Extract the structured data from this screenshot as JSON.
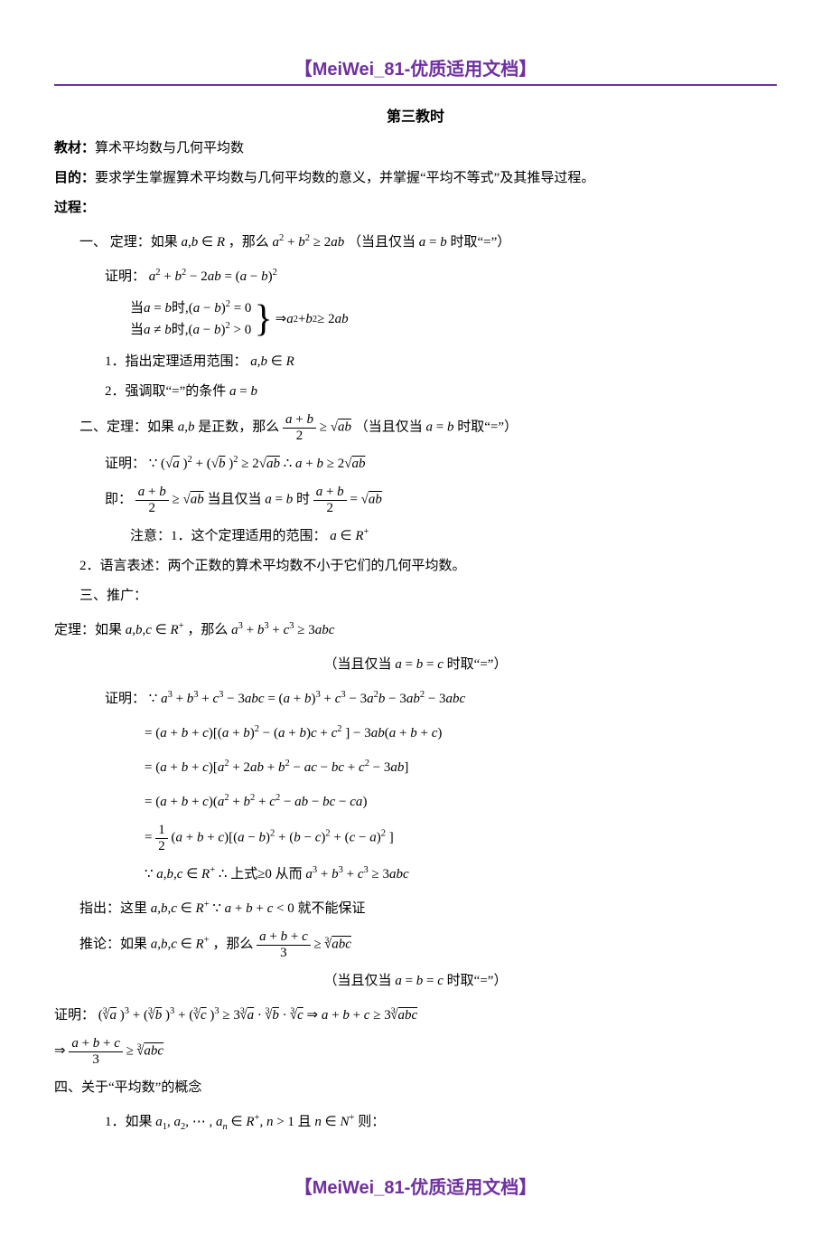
{
  "header": "【MeiWei_81-优质适用文档】",
  "footer": "【MeiWei_81-优质适用文档】",
  "title": "第三教时",
  "l_material_label": "教材：",
  "l_material": "算术平均数与几何平均数",
  "l_aim_label": "目的：",
  "l_aim": "要求学生掌握算术平均数与几何平均数的意义，并掌握“平均不等式”及其推导过程。",
  "l_process": "过程：",
  "s1_t": "一、 定理：如果",
  "s1_m1": "a,b ∈ R",
  "s1_t2": "，那么",
  "s1_m2": "a² + b² ≥ 2ab",
  "s1_t3": "（当且仅当",
  "s1_m3": "a = b",
  "s1_t4": " 时取“=”）",
  "s1_proof": "证明：",
  "s1_pm": "a² + b² − 2ab = (a − b)²",
  "s1_case1a": "当",
  "s1_case1b": "a = b",
  "s1_case1c": "时,",
  "s1_case1d": "(a − b)² = 0",
  "s1_case2a": "当",
  "s1_case2b": "a ≠ b",
  "s1_case2c": "时,",
  "s1_case2d": "(a − b)² > 0",
  "s1_imp": "⇒ a² + b² ≥ 2ab",
  "s1_n1": "1．指出定理适用范围：",
  "s1_n1m": "a,b ∈ R",
  "s1_n2": "2．强调取“=”的条件",
  "s1_n2m": "a = b",
  "s2_t": "二、定理：如果",
  "s2_m1": "a,b",
  "s2_t2": " 是正数，那么",
  "s2_frac_n": "a + b",
  "s2_frac_d": "2",
  "s2_ge": " ≥ ",
  "s2_sqrt": "√",
  "s2_ab": "ab",
  "s2_t3": "（当且仅当 ",
  "s2_m3": "a = b",
  "s2_t4": " 时取“=”）",
  "s2_proof": "证明：",
  "s2_bc": "∵",
  "s2_pm1": "(√a )² + (√b )² ≥ 2√ab",
  "s2_so": " ∴ ",
  "s2_pm2": "a + b ≥ 2√ab",
  "s2_ie": "即：",
  "s2_eq_t": " 当且仅当 ",
  "s2_eq_m": "a = b",
  "s2_eq_t2": " 时 ",
  "s2_note1": "注意：1．这个定理适用的范围：",
  "s2_note1m": "a ∈ R⁺",
  "s2_note2": "2．语言表述：两个正数的算术平均数不小于它们的几何平均数。",
  "s3_t": "三、推广：",
  "s3_th": "定理：如果",
  "s3_m1": "a,b,c ∈ R⁺",
  "s3_t2": "，那么",
  "s3_m2": "a³ + b³ + c³ ≥ 3abc",
  "s3_cond": "（当且仅当 ",
  "s3_condm": "a = b = c",
  "s3_cond2": " 时取“=”）",
  "s3_proof": "证明：",
  "s3_bc": "∵ ",
  "s3_l1": "a³ + b³ + c³ − 3abc = (a + b)³ + c³ − 3a²b − 3ab² − 3abc",
  "s3_l2": "= (a + b + c)[(a + b)² − (a + b)c + c² ] − 3ab(a + b + c)",
  "s3_l3": "= (a + b + c)[a² + 2ab + b² − ac − bc + c² − 3ab]",
  "s3_l4": "= (a + b + c)(a² + b² + c² − ab − bc − ca)",
  "s3_l5a": "= ",
  "s3_l5_n": "1",
  "s3_l5_d": "2",
  "s3_l5b": "(a + b + c)[(a − b)² + (b − c)² + (c − a)² ]",
  "s3_l6a": "∵ ",
  "s3_l6m": "a,b,c ∈ R⁺",
  "s3_l6b": " ∴ 上式≥0 从而 ",
  "s3_l6c": "a³ + b³ + c³ ≥ 3abc",
  "s3_point": "指出：这里",
  "s3_pm1": "a,b,c ∈ R⁺",
  "s3_pbc": " ∵ ",
  "s3_pm2": "a + b + c < 0",
  "s3_pt2": " 就不能保证",
  "s3_cor": "推论：如果",
  "s3_corm": "a,b,c ∈ R⁺",
  "s3_cort": "，那么",
  "s3_cor_n": "a + b + c",
  "s3_cor_d": "3",
  "s3_cor_ge": " ≥ ",
  "s3_cor_rt": "³√abc",
  "s3_cor_cond": "（当且仅当 ",
  "s3_cor_condm": "a = b = c",
  "s3_cor_cond2": " 时取“=”）",
  "s3_cp": "证明：",
  "s3_cp1": "(³√a )³ + (³√b )³ + (³√c )³ ≥ 3 ³√a · ³√b · ³√c  ⇒ a + b + c ≥ 3 ³√abc",
  "s3_cp2a": "⇒ ",
  "s4_t": "四、关于“平均数”的概念",
  "s4_n1": "1．如果",
  "s4_m1": "a₁, a₂, ⋯ , aₙ ∈ R⁺, n > 1",
  "s4_and": "且",
  "s4_m2": "n ∈ N⁺",
  "s4_then": " 则："
}
